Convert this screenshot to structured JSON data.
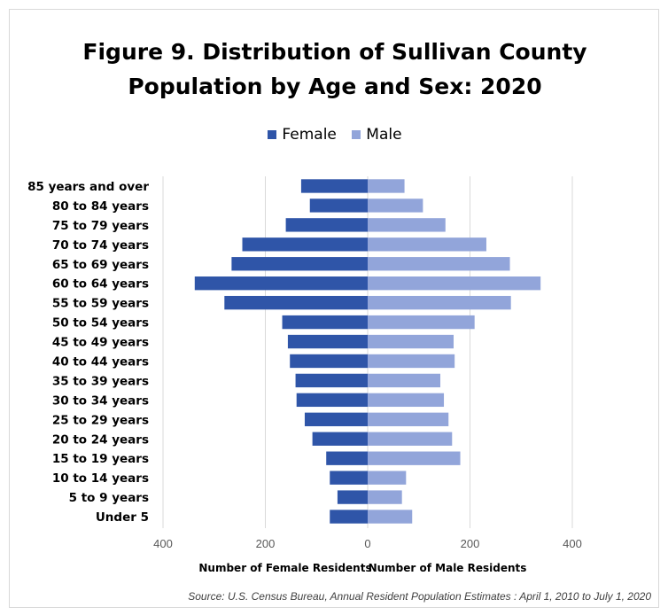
{
  "chart_data": {
    "type": "bar",
    "orientation": "horizontal",
    "layout": "population-pyramid",
    "title_lines": [
      "Figure 9. Distribution of Sullivan County",
      "Population by Age and Sex: 2020"
    ],
    "categories": [
      "85 years and over",
      "80 to 84 years",
      "75 to 79 years",
      "70 to 74 years",
      "65 to 69 years",
      "60 to 64 years",
      "55 to 59 years",
      "50 to 54 years",
      "45 to 49 years",
      "40 to 44 years",
      "35 to 39 years",
      "30 to 34 years",
      "25 to 29 years",
      "20 to 24 years",
      "15 to 19 years",
      "10 to 14 years",
      "5 to 9 years",
      "Under 5"
    ],
    "series": [
      {
        "name": "Female",
        "color": "#2f55a8",
        "values": [
          130,
          113,
          160,
          245,
          266,
          338,
          280,
          167,
          156,
          152,
          141,
          139,
          123,
          108,
          81,
          74,
          59,
          74
        ]
      },
      {
        "name": "Male",
        "color": "#92a5da",
        "values": [
          72,
          108,
          152,
          232,
          278,
          338,
          280,
          209,
          168,
          170,
          142,
          149,
          158,
          165,
          181,
          75,
          67,
          87
        ]
      }
    ],
    "xlim": [
      -400,
      400
    ],
    "x_ticks": [
      -400,
      -200,
      0,
      200,
      400
    ],
    "x_tick_labels": [
      "400",
      "200",
      "0",
      "200",
      "400"
    ],
    "xlabel_left": "Number of Female Residents",
    "xlabel_right": "Number of Male Residents",
    "legend_position": "top-center",
    "grid": "vertical",
    "source": "Source: U.S. Census Bureau, Annual Resident Population Estimates : April 1, 2010 to July 1, 2020"
  }
}
